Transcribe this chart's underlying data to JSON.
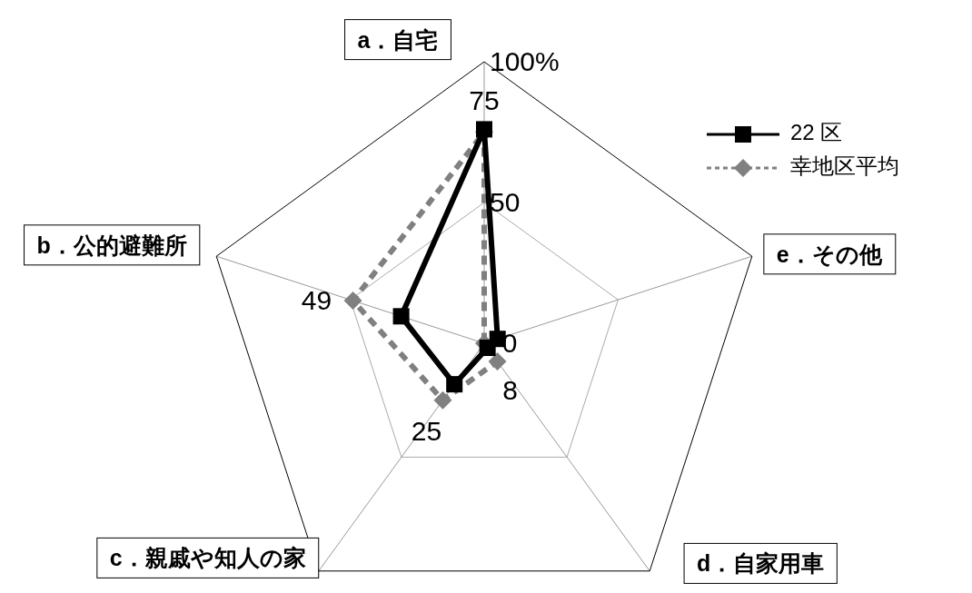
{
  "chart_data": {
    "type": "radar",
    "categories": [
      "a．自宅",
      "e．その他",
      "d．自家用車",
      "c．親戚や知人の家",
      "b．公的避難所"
    ],
    "series": [
      {
        "name": "22 区",
        "color": "#000000",
        "values": [
          76,
          5,
          2,
          18,
          31
        ],
        "marker": "square",
        "line_style": "solid"
      },
      {
        "name": "幸地区平均",
        "color": "#808080",
        "values": [
          75,
          0,
          8,
          25,
          49
        ],
        "marker": "diamond",
        "line_style": "dashed",
        "value_labels": [
          "75",
          "0",
          "8",
          "25",
          "49"
        ]
      }
    ],
    "ylim": [
      0,
      100
    ],
    "yticks": [
      50,
      {
        "value": 100,
        "label": "100%"
      }
    ],
    "legend": "top right"
  }
}
